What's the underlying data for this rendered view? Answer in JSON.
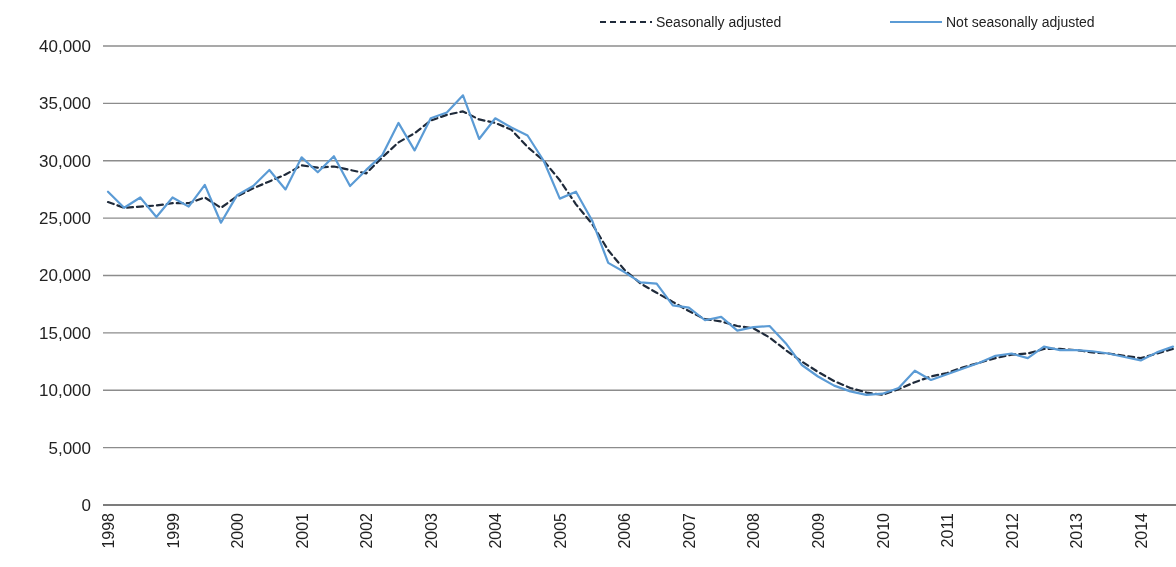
{
  "chart_data": {
    "type": "line",
    "categories": [
      "1998",
      null,
      null,
      null,
      "1999",
      null,
      null,
      null,
      "2000",
      null,
      null,
      null,
      "2001",
      null,
      null,
      null,
      "2002",
      null,
      null,
      null,
      "2003",
      null,
      null,
      null,
      "2004",
      null,
      null,
      null,
      "2005",
      null,
      null,
      null,
      "2006",
      null,
      null,
      null,
      "2007",
      null,
      null,
      null,
      "2008",
      null,
      null,
      null,
      "2009",
      null,
      null,
      null,
      "2010",
      null,
      null,
      null,
      "2011",
      null,
      null,
      null,
      "2012",
      null,
      null,
      null,
      "2013",
      null,
      null,
      null,
      "2014",
      null,
      null
    ],
    "series": [
      {
        "name": "Seasonally adjusted",
        "color": "#1f2a3a",
        "line_style": "dashed",
        "values": [
          26400,
          25900,
          26000,
          26100,
          26300,
          26300,
          26800,
          25900,
          26900,
          27600,
          28200,
          28800,
          29600,
          29400,
          29500,
          29200,
          28900,
          30300,
          31600,
          32400,
          33500,
          34000,
          34300,
          33600,
          33300,
          32700,
          31200,
          30000,
          28300,
          26200,
          24500,
          22200,
          20500,
          19300,
          18500,
          17700,
          16900,
          16200,
          16000,
          15600,
          15400,
          14600,
          13500,
          12500,
          11600,
          10800,
          10200,
          9800,
          9600,
          10100,
          10700,
          11200,
          11500,
          12000,
          12400,
          12800,
          13100,
          13200,
          13600,
          13600,
          13500,
          13300,
          13200,
          13000,
          12800,
          13200,
          13600
        ]
      },
      {
        "name": "Not seasonally adjusted",
        "color": "#5b9bd5",
        "line_style": "solid",
        "values": [
          27300,
          25900,
          26800,
          25100,
          26800,
          26000,
          27900,
          24600,
          27000,
          27800,
          29200,
          27500,
          30300,
          29000,
          30400,
          27800,
          29200,
          30500,
          33300,
          30900,
          33700,
          34200,
          35700,
          31900,
          33700,
          32900,
          32200,
          30000,
          26700,
          27300,
          24800,
          21100,
          20300,
          19400,
          19300,
          17400,
          17200,
          16100,
          16400,
          15200,
          15500,
          15600,
          14100,
          12200,
          11200,
          10400,
          9900,
          9600,
          9700,
          10200,
          11700,
          10900,
          11400,
          11900,
          12400,
          13000,
          13200,
          12800,
          13800,
          13500,
          13500,
          13400,
          13200,
          12900,
          12600,
          13300,
          13800
        ]
      }
    ],
    "ylim": [
      0,
      40000
    ],
    "yticks": [
      {
        "value": 0,
        "label": "0"
      },
      {
        "value": 5000,
        "label": "5,000"
      },
      {
        "value": 10000,
        "label": "10,000"
      },
      {
        "value": 15000,
        "label": "15,000"
      },
      {
        "value": 20000,
        "label": "20,000"
      },
      {
        "value": 25000,
        "label": "25,000"
      },
      {
        "value": 30000,
        "label": "30,000"
      },
      {
        "value": 35000,
        "label": "35,000"
      },
      {
        "value": 40000,
        "label": "40,000"
      }
    ],
    "grid": "y",
    "legend": "top right"
  }
}
